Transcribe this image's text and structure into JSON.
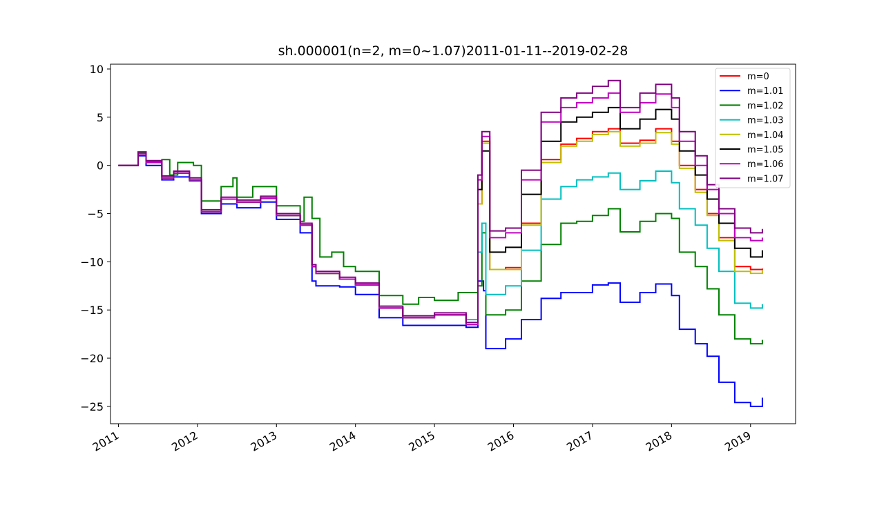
{
  "chart_data": {
    "type": "line",
    "title": "sh.000001(n=2, m=0~1.07)2011-01-11--2019-02-28",
    "xlabel": "",
    "ylabel": "",
    "xlim": [
      2010.9,
      2019.57
    ],
    "ylim": [
      -26.8,
      10.5
    ],
    "xticks": [
      2011,
      2012,
      2013,
      2014,
      2015,
      2016,
      2017,
      2018,
      2019
    ],
    "xtick_labels": [
      "2011",
      "2012",
      "2013",
      "2014",
      "2015",
      "2016",
      "2017",
      "2018",
      "2019"
    ],
    "yticks": [
      10,
      5,
      0,
      -5,
      -10,
      -15,
      -20,
      -25
    ],
    "ytick_labels": [
      "10",
      "5",
      "0",
      "−5",
      "−10",
      "−15",
      "−20",
      "−25"
    ],
    "grid": false,
    "legend_position": "top-right",
    "series": [
      {
        "name": "m=0",
        "color": "#ff0000",
        "x": [
          2011.0,
          2011.25,
          2011.35,
          2011.55,
          2011.7,
          2011.9,
          2012.05,
          2012.3,
          2012.5,
          2012.8,
          2013.0,
          2013.3,
          2013.45,
          2013.5,
          2013.8,
          2014.0,
          2014.3,
          2014.6,
          2015.0,
          2015.4,
          2015.55,
          2015.6,
          2015.7,
          2015.9,
          2016.1,
          2016.35,
          2016.6,
          2016.8,
          2017.0,
          2017.2,
          2017.35,
          2017.6,
          2017.8,
          2018.0,
          2018.1,
          2018.3,
          2018.45,
          2018.6,
          2018.8,
          2019.0,
          2019.15
        ],
        "y": [
          0.0,
          1.2,
          0.3,
          -1.3,
          -0.8,
          -1.5,
          -4.8,
          -3.5,
          -3.8,
          -3.4,
          -5.2,
          -6.2,
          -10.5,
          -11.2,
          -11.8,
          -12.4,
          -14.8,
          -15.8,
          -15.5,
          -16.5,
          -4.0,
          2.5,
          -10.8,
          -10.6,
          -6.0,
          0.6,
          2.2,
          2.8,
          3.5,
          3.8,
          2.3,
          2.6,
          3.8,
          2.5,
          0.0,
          -2.5,
          -5.0,
          -7.5,
          -10.5,
          -10.8,
          -10.7
        ]
      },
      {
        "name": "m=1.01",
        "color": "#0000ff",
        "x": [
          2011.0,
          2011.25,
          2011.35,
          2011.55,
          2011.7,
          2011.9,
          2012.05,
          2012.3,
          2012.5,
          2012.8,
          2013.0,
          2013.3,
          2013.45,
          2013.5,
          2013.8,
          2014.0,
          2014.3,
          2014.6,
          2015.0,
          2015.4,
          2015.55,
          2015.62,
          2015.65,
          2015.9,
          2016.1,
          2016.35,
          2016.6,
          2016.8,
          2017.0,
          2017.2,
          2017.35,
          2017.6,
          2017.8,
          2018.0,
          2018.1,
          2018.3,
          2018.45,
          2018.6,
          2018.8,
          2019.0,
          2019.15
        ],
        "y": [
          0.0,
          1.0,
          0.0,
          -1.5,
          -1.2,
          -1.6,
          -5.0,
          -4.0,
          -4.4,
          -3.8,
          -5.6,
          -7.0,
          -12.0,
          -12.5,
          -12.6,
          -13.4,
          -15.8,
          -16.6,
          -16.6,
          -16.8,
          -12.0,
          -13.0,
          -19.0,
          -18.0,
          -16.0,
          -13.8,
          -13.2,
          -13.2,
          -12.4,
          -12.2,
          -14.2,
          -13.2,
          -12.3,
          -13.5,
          -17.0,
          -18.5,
          -19.8,
          -22.5,
          -24.6,
          -25.0,
          -24.1
        ]
      },
      {
        "name": "m=1.02",
        "color": "#008000",
        "x": [
          2011.0,
          2011.25,
          2011.35,
          2011.55,
          2011.65,
          2011.75,
          2011.95,
          2012.05,
          2012.3,
          2012.45,
          2012.5,
          2012.7,
          2012.9,
          2013.0,
          2013.3,
          2013.35,
          2013.45,
          2013.55,
          2013.7,
          2013.85,
          2014.0,
          2014.3,
          2014.6,
          2014.8,
          2015.0,
          2015.3,
          2015.55,
          2015.6,
          2015.65,
          2015.9,
          2016.1,
          2016.35,
          2016.6,
          2016.8,
          2017.0,
          2017.2,
          2017.35,
          2017.6,
          2017.8,
          2018.0,
          2018.1,
          2018.3,
          2018.45,
          2018.6,
          2018.8,
          2019.0,
          2019.15
        ],
        "y": [
          0.0,
          1.3,
          0.4,
          0.6,
          -1.0,
          0.3,
          0.0,
          -3.7,
          -2.2,
          -1.3,
          -3.3,
          -2.2,
          -2.2,
          -4.2,
          -5.8,
          -3.3,
          -5.5,
          -9.5,
          -9.0,
          -10.5,
          -11.0,
          -13.5,
          -14.4,
          -13.7,
          -14.0,
          -13.2,
          -12.5,
          -7.0,
          -15.5,
          -15.0,
          -12.0,
          -8.2,
          -6.0,
          -5.8,
          -5.2,
          -4.5,
          -6.9,
          -5.8,
          -5.0,
          -5.5,
          -9.0,
          -10.5,
          -12.8,
          -15.5,
          -18.0,
          -18.5,
          -18.1
        ]
      },
      {
        "name": "m=1.03",
        "color": "#00bfbf",
        "x": [
          2011.0,
          2011.25,
          2011.35,
          2011.55,
          2011.7,
          2011.9,
          2012.05,
          2012.3,
          2012.5,
          2012.8,
          2013.0,
          2013.3,
          2013.45,
          2013.5,
          2013.8,
          2014.0,
          2014.3,
          2014.6,
          2015.0,
          2015.4,
          2015.55,
          2015.6,
          2015.65,
          2015.9,
          2016.1,
          2016.35,
          2016.6,
          2016.8,
          2017.0,
          2017.2,
          2017.35,
          2017.6,
          2017.8,
          2018.0,
          2018.1,
          2018.3,
          2018.45,
          2018.6,
          2018.8,
          2019.0,
          2019.15
        ],
        "y": [
          0.0,
          1.2,
          0.3,
          -1.3,
          -0.8,
          -1.5,
          -4.8,
          -3.5,
          -3.8,
          -3.4,
          -5.2,
          -6.2,
          -10.5,
          -11.2,
          -11.8,
          -12.4,
          -14.8,
          -15.8,
          -15.5,
          -16.0,
          -9.0,
          -6.0,
          -13.4,
          -12.5,
          -8.8,
          -3.5,
          -2.2,
          -1.5,
          -1.2,
          -0.8,
          -2.5,
          -1.6,
          -0.6,
          -1.8,
          -4.5,
          -6.2,
          -8.6,
          -11.0,
          -14.3,
          -14.8,
          -14.4
        ]
      },
      {
        "name": "m=1.04",
        "color": "#bfbf00",
        "x": [
          2011.0,
          2011.25,
          2011.35,
          2011.55,
          2011.7,
          2011.9,
          2012.05,
          2012.3,
          2012.5,
          2012.8,
          2013.0,
          2013.3,
          2013.45,
          2013.5,
          2013.8,
          2014.0,
          2014.3,
          2014.6,
          2015.0,
          2015.4,
          2015.55,
          2015.6,
          2015.7,
          2015.9,
          2016.1,
          2016.35,
          2016.6,
          2016.8,
          2017.0,
          2017.2,
          2017.35,
          2017.6,
          2017.8,
          2018.0,
          2018.1,
          2018.3,
          2018.45,
          2018.6,
          2018.8,
          2019.0,
          2019.15
        ],
        "y": [
          0.0,
          1.2,
          0.3,
          -1.3,
          -0.8,
          -1.5,
          -4.8,
          -3.5,
          -3.8,
          -3.4,
          -5.2,
          -6.2,
          -10.5,
          -11.2,
          -11.8,
          -12.4,
          -14.8,
          -15.8,
          -15.5,
          -16.5,
          -4.0,
          2.3,
          -10.8,
          -10.8,
          -6.2,
          0.3,
          2.0,
          2.5,
          3.2,
          3.5,
          2.0,
          2.3,
          3.4,
          2.2,
          -0.3,
          -2.8,
          -5.2,
          -7.8,
          -11.0,
          -11.2,
          -10.9
        ]
      },
      {
        "name": "m=1.05",
        "color": "#000000",
        "x": [
          2011.0,
          2011.25,
          2011.35,
          2011.55,
          2011.7,
          2011.9,
          2012.05,
          2012.3,
          2012.5,
          2012.8,
          2013.0,
          2013.3,
          2013.45,
          2013.5,
          2013.8,
          2014.0,
          2014.3,
          2014.6,
          2015.0,
          2015.4,
          2015.55,
          2015.6,
          2015.7,
          2015.9,
          2016.1,
          2016.35,
          2016.6,
          2016.8,
          2017.0,
          2017.2,
          2017.35,
          2017.6,
          2017.8,
          2018.0,
          2018.1,
          2018.3,
          2018.45,
          2018.6,
          2018.8,
          2019.0,
          2019.15
        ],
        "y": [
          0.0,
          1.2,
          0.3,
          -1.3,
          -0.8,
          -1.5,
          -4.8,
          -3.5,
          -3.8,
          -3.4,
          -5.2,
          -6.2,
          -10.5,
          -11.2,
          -11.8,
          -12.4,
          -14.8,
          -15.8,
          -15.5,
          -16.5,
          -2.5,
          1.5,
          -9.0,
          -8.5,
          -3.0,
          2.5,
          4.5,
          5.0,
          5.5,
          6.0,
          3.8,
          4.8,
          5.8,
          4.8,
          1.5,
          -1.0,
          -3.5,
          -6.0,
          -8.6,
          -9.5,
          -8.8
        ]
      },
      {
        "name": "m=1.06",
        "color": "#bf00bf",
        "x": [
          2011.0,
          2011.25,
          2011.35,
          2011.55,
          2011.7,
          2011.9,
          2012.05,
          2012.3,
          2012.5,
          2012.8,
          2013.0,
          2013.3,
          2013.45,
          2013.5,
          2013.8,
          2014.0,
          2014.3,
          2014.6,
          2015.0,
          2015.4,
          2015.55,
          2015.6,
          2015.7,
          2015.9,
          2016.1,
          2016.35,
          2016.6,
          2016.8,
          2017.0,
          2017.2,
          2017.35,
          2017.6,
          2017.8,
          2018.0,
          2018.1,
          2018.3,
          2018.45,
          2018.6,
          2018.8,
          2019.0,
          2019.15
        ],
        "y": [
          0.0,
          1.2,
          0.3,
          -1.3,
          -0.8,
          -1.5,
          -4.8,
          -3.5,
          -3.8,
          -3.4,
          -5.2,
          -6.2,
          -10.5,
          -11.2,
          -11.8,
          -12.4,
          -14.8,
          -15.8,
          -15.5,
          -16.5,
          -1.5,
          3.0,
          -7.5,
          -7.0,
          -1.5,
          4.5,
          6.0,
          6.5,
          7.0,
          7.5,
          5.5,
          6.5,
          7.4,
          6.0,
          2.5,
          0.0,
          -2.5,
          -5.0,
          -7.5,
          -7.8,
          -7.5
        ]
      },
      {
        "name": "m=1.07",
        "color": "#800080",
        "x": [
          2011.0,
          2011.25,
          2011.35,
          2011.55,
          2011.7,
          2011.9,
          2012.05,
          2012.3,
          2012.5,
          2012.8,
          2013.0,
          2013.3,
          2013.45,
          2013.5,
          2013.8,
          2014.0,
          2014.3,
          2014.6,
          2015.0,
          2015.4,
          2015.55,
          2015.6,
          2015.7,
          2015.9,
          2016.1,
          2016.35,
          2016.6,
          2016.8,
          2017.0,
          2017.2,
          2017.35,
          2017.6,
          2017.8,
          2018.0,
          2018.1,
          2018.3,
          2018.45,
          2018.6,
          2018.8,
          2019.0,
          2019.15
        ],
        "y": [
          0.0,
          1.4,
          0.5,
          -1.1,
          -0.6,
          -1.3,
          -4.6,
          -3.3,
          -3.6,
          -3.2,
          -5.0,
          -6.0,
          -10.3,
          -11.0,
          -11.6,
          -12.2,
          -14.6,
          -15.6,
          -15.3,
          -16.3,
          -1.0,
          3.5,
          -6.8,
          -6.5,
          -0.5,
          5.5,
          7.0,
          7.5,
          8.2,
          8.8,
          6.0,
          7.5,
          8.4,
          7.0,
          3.5,
          1.0,
          -2.0,
          -4.5,
          -6.5,
          -7.0,
          -6.6
        ]
      }
    ]
  }
}
